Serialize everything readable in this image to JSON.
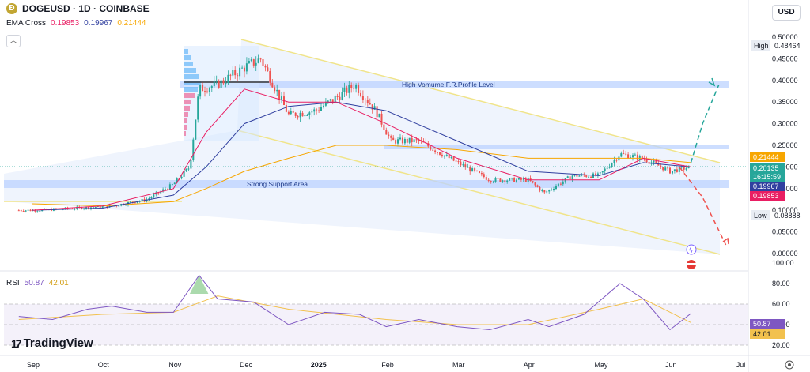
{
  "header": {
    "coin_icon": "dogecoin-icon",
    "title": "DOGEUSD · 1D · COINBASE",
    "currency_button": "USD"
  },
  "indicators": {
    "ema_label": "EMA Cross",
    "ema_fast": "0.19853",
    "ema_mid": "0.19967",
    "ema_slow": "0.21444",
    "rsi_label": "RSI",
    "rsi_value": "50.87",
    "rsi_ma": "42.01"
  },
  "annotations": {
    "high_label": "High",
    "high_value": "0.48464",
    "low_label": "Low",
    "low_value": "0.08888",
    "resistance_text": "High Vomume F.R.Profile Level",
    "support_text": "Strong Support Area"
  },
  "price_badges": {
    "ema_slow": "0.21444",
    "last_price": "0.20135",
    "countdown": "16:15:59",
    "ema_mid": "0.19967",
    "ema_fast": "0.19853"
  },
  "branding": {
    "logo_text": "TradingView"
  },
  "colors": {
    "up": "#26a69a",
    "down": "#ef5350",
    "ema_fast": "#e91e63",
    "ema_mid": "#303f9f",
    "ema_slow": "#f7a600",
    "rsi": "#7e57c2",
    "channel": "#f5e27a",
    "zone": "#bcd3ff"
  },
  "chart_data": [
    {
      "type": "line",
      "subtype": "candlestick-approx",
      "title": "DOGEUSD · 1D · COINBASE",
      "x_ticks": [
        "Sep",
        "Oct",
        "Nov",
        "Dec",
        "2025",
        "Feb",
        "Mar",
        "Apr",
        "May",
        "Jun",
        "Jul"
      ],
      "y_ticks": [
        "0.00000",
        "0.05000",
        "0.10000",
        "0.15000",
        "0.20000",
        "0.25000",
        "0.30000",
        "0.35000",
        "0.40000",
        "0.45000",
        "0.50000"
      ],
      "ylim": [
        -0.005,
        0.505
      ],
      "series": [
        {
          "name": "Price",
          "x": [
            "Aug 26",
            "Sep 5",
            "Sep 20",
            "Oct 5",
            "Oct 20",
            "Nov 1",
            "Nov 8",
            "Nov 12",
            "Nov 20",
            "Dec 1",
            "Dec 8",
            "Dec 20",
            "Jan 1",
            "Jan 10",
            "Jan 18",
            "Jan 27",
            "Feb 3",
            "Feb 15",
            "Mar 1",
            "Mar 15",
            "Apr 1",
            "Apr 8",
            "Apr 20",
            "May 1",
            "May 10",
            "May 20",
            "Jun 1",
            "Jun 10"
          ],
          "values": [
            0.1,
            0.1,
            0.105,
            0.11,
            0.125,
            0.16,
            0.2,
            0.38,
            0.39,
            0.43,
            0.45,
            0.32,
            0.33,
            0.36,
            0.39,
            0.33,
            0.26,
            0.26,
            0.21,
            0.17,
            0.17,
            0.14,
            0.18,
            0.18,
            0.23,
            0.22,
            0.19,
            0.2
          ]
        },
        {
          "name": "EMA 0.19853",
          "x": [
            "Sep 1",
            "Oct 1",
            "Nov 1",
            "Nov 15",
            "Dec 1",
            "Dec 20",
            "Jan 10",
            "Feb 1",
            "Mar 1",
            "Apr 1",
            "May 1",
            "May 20",
            "Jun 10"
          ],
          "values": [
            0.1,
            0.11,
            0.15,
            0.28,
            0.38,
            0.35,
            0.35,
            0.3,
            0.22,
            0.17,
            0.17,
            0.22,
            0.2
          ]
        },
        {
          "name": "EMA 0.19967",
          "x": [
            "Sep 1",
            "Oct 1",
            "Nov 1",
            "Nov 15",
            "Dec 1",
            "Dec 20",
            "Jan 10",
            "Feb 1",
            "Mar 1",
            "Apr 1",
            "May 1",
            "May 20",
            "Jun 10"
          ],
          "values": [
            0.1,
            0.105,
            0.135,
            0.2,
            0.3,
            0.34,
            0.35,
            0.33,
            0.26,
            0.19,
            0.18,
            0.21,
            0.2
          ]
        },
        {
          "name": "EMA 0.21444",
          "x": [
            "Sep 1",
            "Oct 1",
            "Nov 1",
            "Nov 15",
            "Dec 1",
            "Dec 20",
            "Jan 10",
            "Feb 1",
            "Mar 1",
            "Apr 1",
            "May 1",
            "May 20",
            "Jun 10"
          ],
          "values": [
            0.115,
            0.11,
            0.12,
            0.15,
            0.19,
            0.22,
            0.25,
            0.25,
            0.24,
            0.22,
            0.22,
            0.22,
            0.21
          ]
        },
        {
          "name": "Bullish projection",
          "x": [
            "Jun 10",
            "Jun 15",
            "Jun 22"
          ],
          "values": [
            0.21,
            0.3,
            0.39
          ]
        },
        {
          "name": "Bearish projection",
          "x": [
            "Jun 5",
            "Jun 15",
            "Jun 25"
          ],
          "values": [
            0.2,
            0.13,
            0.02
          ]
        }
      ],
      "zones": [
        {
          "label": "High Vomume F.R.Profile Level",
          "from": 0.38,
          "to": 0.4
        },
        {
          "label": "Strong Support Area",
          "from": 0.155,
          "to": 0.175
        },
        {
          "label": "",
          "from": 0.245,
          "to": 0.255
        }
      ],
      "legend_placement": "top-left",
      "grid": false
    },
    {
      "type": "line",
      "title": "RSI",
      "y_ticks": [
        "20.00",
        "40.00",
        "60.00",
        "80.00",
        "100.00"
      ],
      "ylim": [
        20,
        100
      ],
      "series": [
        {
          "name": "RSI 50.87",
          "x": [
            "Aug 26",
            "Sep 10",
            "Sep 25",
            "Oct 5",
            "Oct 20",
            "Nov 1",
            "Nov 12",
            "Nov 20",
            "Dec 5",
            "Dec 20",
            "Jan 5",
            "Jan 20",
            "Feb 1",
            "Feb 15",
            "Mar 1",
            "Mar 15",
            "Apr 1",
            "Apr 10",
            "Apr 25",
            "May 10",
            "May 20",
            "Jun 1",
            "Jun 10"
          ],
          "values": [
            48,
            45,
            55,
            58,
            52,
            52,
            88,
            65,
            62,
            40,
            52,
            50,
            38,
            45,
            38,
            35,
            45,
            38,
            50,
            80,
            65,
            35,
            50.87
          ]
        },
        {
          "name": "RSI MA 42.01",
          "x": [
            "Aug 26",
            "Oct 1",
            "Nov 1",
            "Nov 20",
            "Dec 20",
            "Feb 1",
            "Mar 1",
            "Apr 1",
            "May 1",
            "May 20",
            "Jun 10"
          ],
          "values": [
            45,
            50,
            52,
            68,
            55,
            45,
            40,
            40,
            55,
            65,
            42.01
          ]
        }
      ],
      "reference_lines": [
        70,
        50,
        30
      ]
    }
  ]
}
